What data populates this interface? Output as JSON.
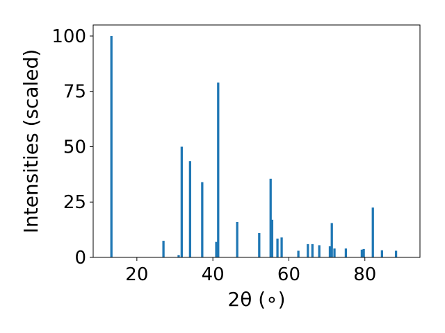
{
  "chart_data": {
    "type": "bar",
    "title": "",
    "xlabel": "2θ (∘)",
    "ylabel": "Intensities (scaled)",
    "xlim": [
      8.5,
      94.5
    ],
    "ylim": [
      0,
      105
    ],
    "grid": false,
    "bar_width_deg": 0.6,
    "bar_color": "#1f77b4",
    "x_ticks": [
      20,
      40,
      60,
      80
    ],
    "y_ticks": [
      0,
      25,
      50,
      75,
      100
    ],
    "x": [
      13.3,
      27.0,
      31.0,
      31.8,
      34.0,
      37.2,
      40.9,
      41.4,
      46.4,
      52.2,
      55.2,
      55.6,
      57.0,
      58.1,
      62.5,
      65.0,
      66.2,
      68.0,
      70.8,
      71.3,
      72.0,
      75.0,
      79.2,
      79.7,
      82.1,
      84.5,
      88.2
    ],
    "values": [
      100,
      7.5,
      1,
      50,
      43.5,
      34,
      7,
      79,
      16,
      11,
      35.5,
      17,
      8.5,
      9,
      3,
      6,
      6,
      5.5,
      5,
      15.5,
      4,
      4,
      3.5,
      3.8,
      22.5,
      3.2,
      3
    ]
  }
}
